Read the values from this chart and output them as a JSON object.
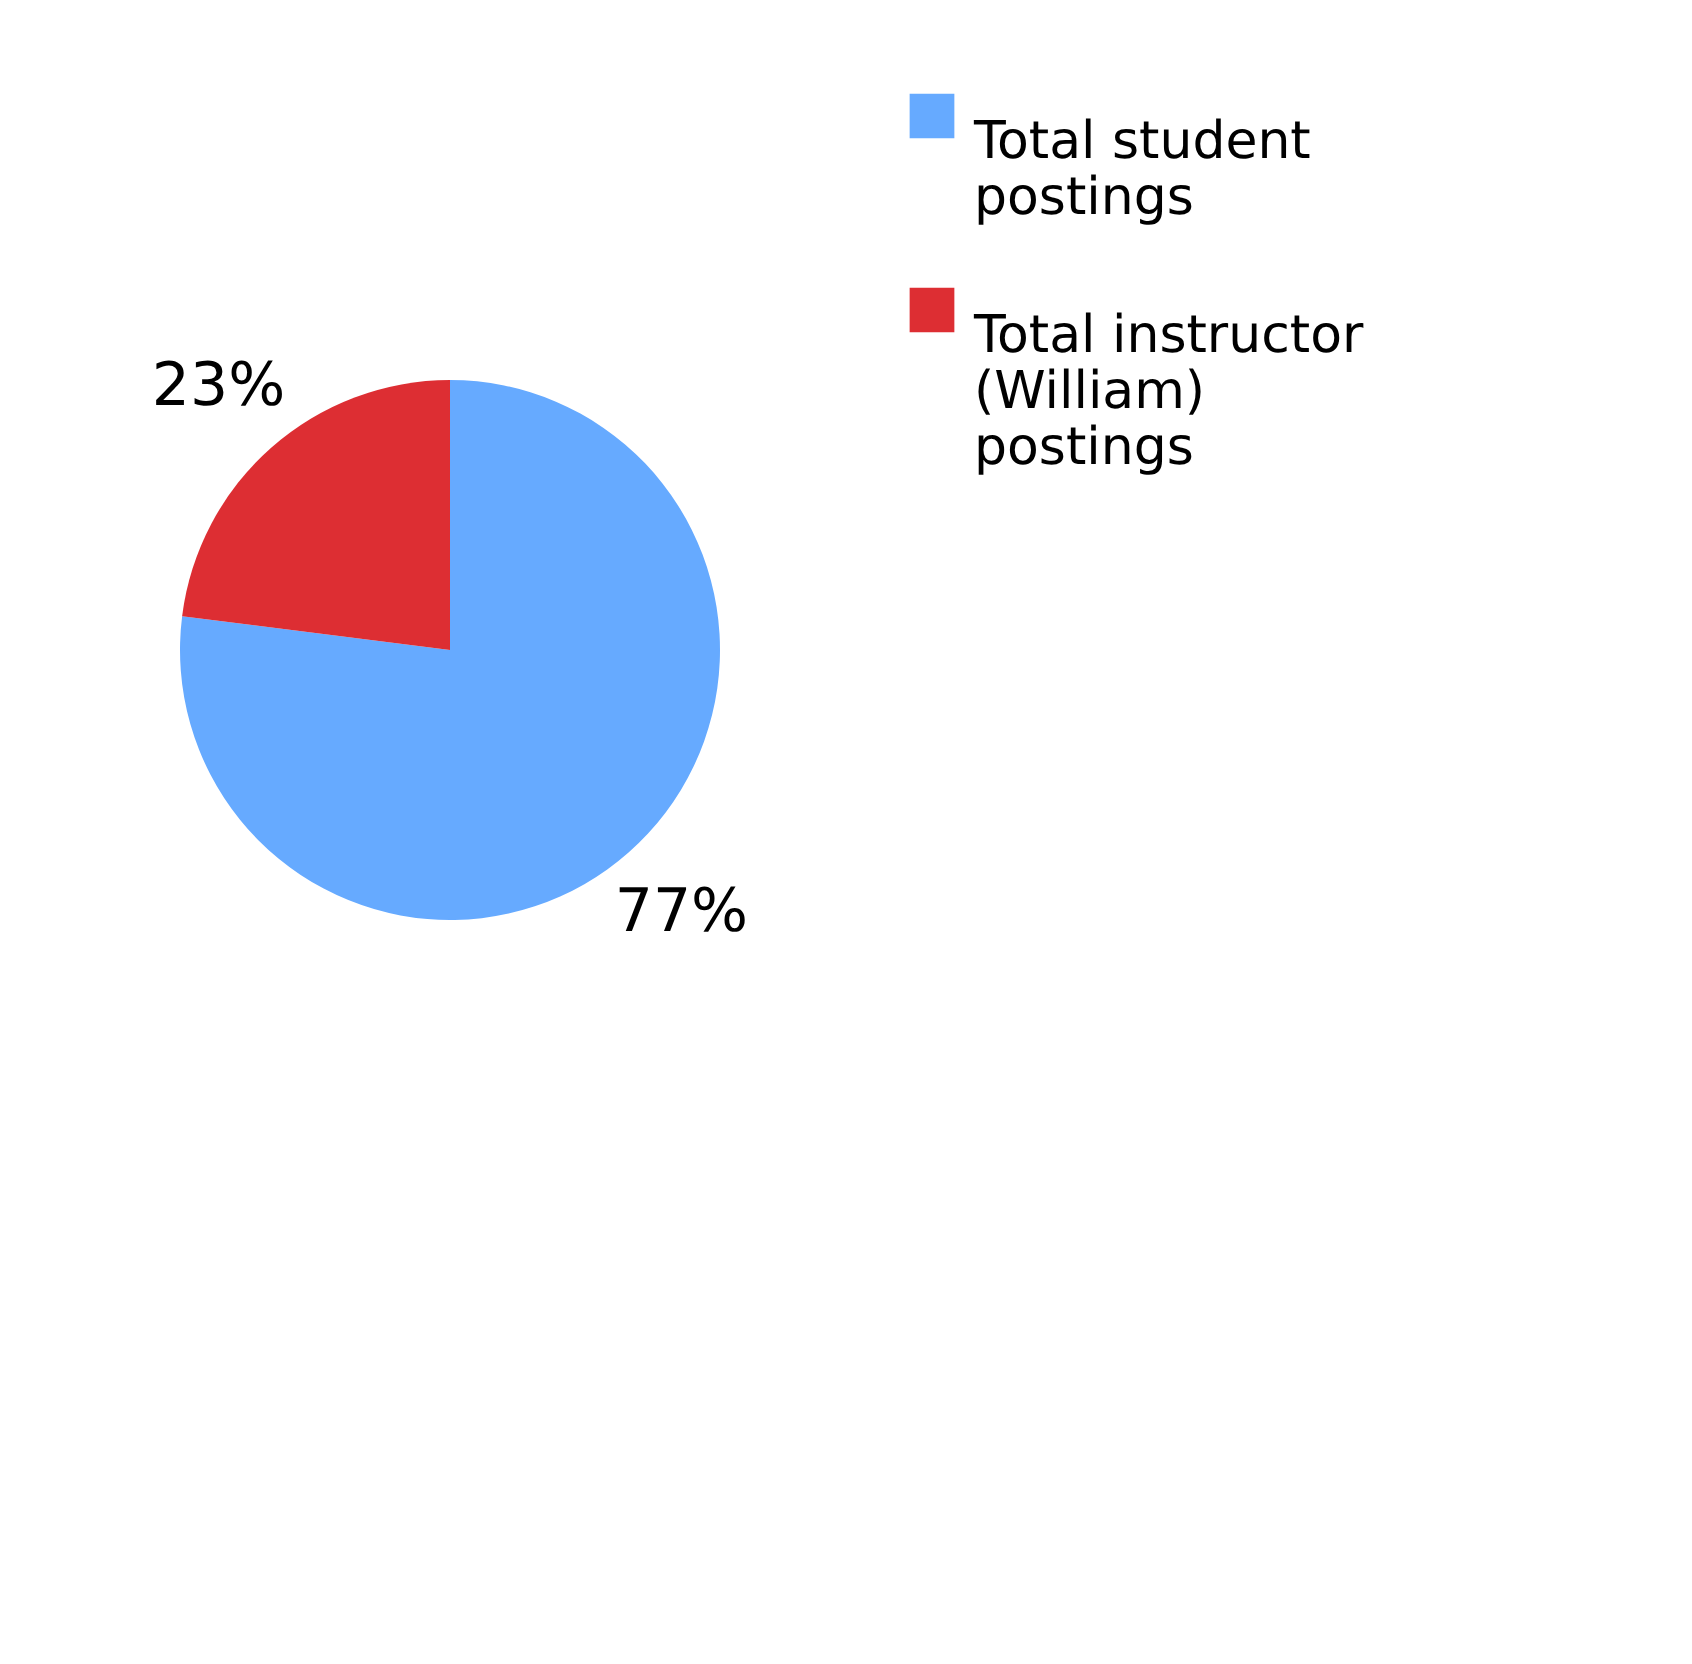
{
  "chart_data": {
    "type": "pie",
    "categories": [
      "Total student postings",
      "Total instructor (William) postings"
    ],
    "values": [
      77,
      23
    ],
    "colors": [
      "#66aaff",
      "#dd2e33"
    ],
    "value_labels": [
      "77%",
      "23%"
    ],
    "legend": "right"
  }
}
